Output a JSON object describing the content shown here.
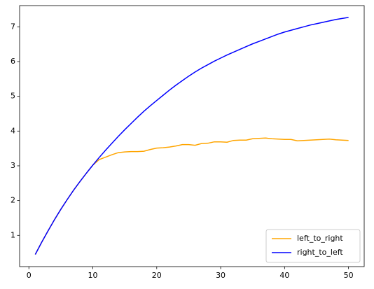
{
  "chart_data": {
    "type": "line",
    "x": [
      1,
      2,
      3,
      4,
      5,
      6,
      7,
      8,
      9,
      10,
      11,
      12,
      13,
      14,
      15,
      16,
      17,
      18,
      19,
      20,
      21,
      22,
      23,
      24,
      25,
      26,
      27,
      28,
      29,
      30,
      31,
      32,
      33,
      34,
      35,
      36,
      37,
      38,
      39,
      40,
      41,
      42,
      43,
      44,
      45,
      46,
      47,
      48,
      49,
      50
    ],
    "series": [
      {
        "name": "left_to_right",
        "color": "orange",
        "values": [
          0.45,
          0.8,
          1.13,
          1.45,
          1.75,
          2.03,
          2.3,
          2.55,
          2.79,
          3.02,
          3.18,
          3.25,
          3.32,
          3.38,
          3.4,
          3.41,
          3.41,
          3.42,
          3.47,
          3.51,
          3.52,
          3.54,
          3.57,
          3.61,
          3.61,
          3.59,
          3.64,
          3.65,
          3.69,
          3.69,
          3.68,
          3.73,
          3.74,
          3.74,
          3.78,
          3.79,
          3.8,
          3.78,
          3.77,
          3.76,
          3.76,
          3.72,
          3.73,
          3.74,
          3.75,
          3.76,
          3.77,
          3.75,
          3.74,
          3.73
        ]
      },
      {
        "name": "right_to_left",
        "color": "blue",
        "values": [
          0.45,
          0.8,
          1.13,
          1.45,
          1.75,
          2.03,
          2.3,
          2.55,
          2.79,
          3.02,
          3.24,
          3.45,
          3.65,
          3.85,
          4.04,
          4.22,
          4.4,
          4.57,
          4.73,
          4.88,
          5.03,
          5.18,
          5.32,
          5.45,
          5.58,
          5.7,
          5.81,
          5.91,
          6.01,
          6.1,
          6.19,
          6.27,
          6.35,
          6.43,
          6.51,
          6.58,
          6.65,
          6.72,
          6.79,
          6.85,
          6.9,
          6.95,
          7.0,
          7.05,
          7.09,
          7.13,
          7.17,
          7.21,
          7.24,
          7.27
        ]
      }
    ],
    "xlim": [
      -1.45,
      52.45
    ],
    "xticks": [
      0,
      10,
      20,
      30,
      40,
      50
    ],
    "ylim": [
      0.1,
      7.61
    ],
    "yticks": [
      1,
      2,
      3,
      4,
      5,
      6,
      7
    ],
    "legend": "lower right"
  }
}
